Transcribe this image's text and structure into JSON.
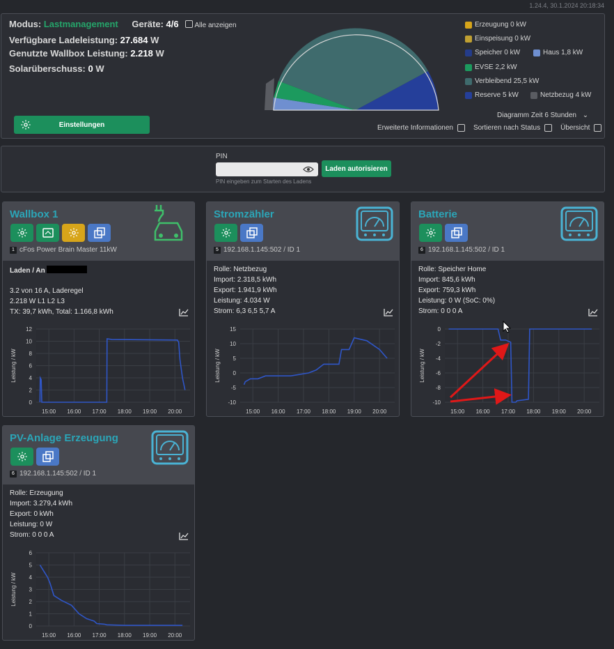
{
  "version": "1.24.4, 30.1.2024 20:18:34",
  "summary": {
    "mode_label": "Modus:",
    "mode_value": "Lastmanagement",
    "devices_label": "Geräte:",
    "devices_value": "4/6",
    "show_all_label": "Alle anzeigen",
    "available_label": "Verfügbare Ladeleistung:",
    "available_value": "27.684",
    "available_unit": "W",
    "used_label": "Genutzte Wallbox Leistung:",
    "used_value": "2.218",
    "used_unit": "W",
    "solar_label": "Solarüberschuss:",
    "solar_value": "0",
    "solar_unit": "W",
    "settings_button": "Einstellungen",
    "diagram_time": "Diagramm Zeit 6 Stunden",
    "extended_info": "Erweiterte Informationen",
    "sort_status": "Sortieren nach Status",
    "overview": "Übersicht"
  },
  "legend": [
    {
      "label": "Erzeugung 0 kW",
      "color": "#d7a51a"
    },
    {
      "label": "Einspeisung 0 kW",
      "color": "#c0a032"
    },
    {
      "label": "Speicher 0 kW",
      "color": "#243c8a"
    },
    {
      "label": "Haus 1,8 kW",
      "color": "#6f8fd0"
    },
    {
      "label": "EVSE 2,2 kW",
      "color": "#1c9a5e"
    },
    {
      "label": "Verbleibend 25,5 kW",
      "color": "#3f6b6d"
    },
    {
      "label": "Reserve 5 kW",
      "color": "#253f9a"
    },
    {
      "label": "Netzbezug 4 kW",
      "color": "#5a5c62"
    }
  ],
  "pin": {
    "label": "PIN",
    "placeholder": "",
    "hint": "PIN eingeben zum Starten des Ladens",
    "button": "Laden autorisieren"
  },
  "cards": {
    "wallbox": {
      "title": "Wallbox 1",
      "index": "1",
      "subtitle": "cFos Power Brain Master 11kW",
      "status": "Laden / An",
      "line1": "3.2 von 16 A, Laderegel",
      "line2": "2.218 W L1 L2 L3",
      "line3": "TX: 39,7 kWh, Total: 1.166,8 kWh"
    },
    "meter": {
      "title": "Stromzähler",
      "index": "5",
      "subtitle": "192.168.1.145:502 / ID 1",
      "role": "Rolle: Netzbezug",
      "import": "Import: 2.318,5 kWh",
      "export": "Export: 1.941,9 kWh",
      "power": "Leistung: 4.034 W",
      "current": "Strom: 6,3 6,5 5,7 A"
    },
    "battery": {
      "title": "Batterie",
      "index": "6",
      "subtitle": "192.168.1.145:502 / ID 1",
      "role": "Rolle: Speicher Home",
      "import": "Import: 845,6 kWh",
      "export": "Export: 759,3 kWh",
      "power": "Leistung: 0 W (SoC: 0%)",
      "current": "Strom: 0 0 0 A"
    },
    "pv": {
      "title": "PV-Anlage Erzeugung",
      "index": "6",
      "subtitle": "192.168.1.145:502 / ID 1",
      "role": "Rolle: Erzeugung",
      "import": "Import: 3.279,4 kWh",
      "export": "Export: 0 kWh",
      "power": "Leistung: 0 W",
      "current": "Strom: 0 0 0 A"
    }
  },
  "chart_data": [
    {
      "type": "line",
      "name": "wallbox",
      "ylabel": "Leistung / kW",
      "ylim": [
        0,
        12
      ],
      "yticks": [
        "12",
        "10",
        "8",
        "6",
        "4",
        "2",
        "0"
      ],
      "xticks": [
        "15:00",
        "16:00",
        "17:00",
        "18:00",
        "19:00",
        "20:00"
      ],
      "x": [
        14.65,
        14.66,
        14.7,
        14.72,
        17.3,
        17.31,
        17.5,
        20.1,
        20.15,
        20.2,
        20.3,
        20.4
      ],
      "y": [
        0,
        4,
        3.7,
        0,
        0,
        10.4,
        10.3,
        10.2,
        9.8,
        7,
        4,
        2
      ]
    },
    {
      "type": "line",
      "name": "meter",
      "ylabel": "Leistung / kW",
      "ylim": [
        -10,
        15
      ],
      "yticks": [
        "15",
        "10",
        "5",
        "0",
        "-5",
        "-10"
      ],
      "xticks": [
        "15:00",
        "16:00",
        "17:00",
        "18:00",
        "19:00",
        "20:00"
      ],
      "x": [
        14.65,
        14.7,
        14.9,
        15.2,
        15.5,
        15.9,
        16.5,
        17.2,
        17.5,
        17.8,
        18.2,
        18.4,
        18.5,
        18.8,
        19.0,
        19.5,
        20.0,
        20.3
      ],
      "y": [
        -4,
        -3,
        -2,
        -2,
        -1,
        -1,
        -1,
        0,
        1,
        3,
        3,
        3,
        8,
        8,
        12,
        11,
        8,
        5
      ]
    },
    {
      "type": "line",
      "name": "battery",
      "ylabel": "Leistung / kW",
      "ylim": [
        -10,
        0
      ],
      "yticks": [
        "0",
        "-2",
        "-4",
        "-6",
        "-8",
        "-10"
      ],
      "xticks": [
        "15:00",
        "16:00",
        "17:00",
        "18:00",
        "19:00",
        "20:00"
      ],
      "x": [
        14.65,
        16.6,
        16.7,
        16.9,
        17.1,
        17.15,
        17.3,
        17.35,
        17.8,
        17.85,
        20.3
      ],
      "y": [
        0,
        0,
        -1.5,
        -1.5,
        -1.8,
        -10,
        -10,
        -9.8,
        -9.6,
        0,
        0
      ]
    },
    {
      "type": "line",
      "name": "pv",
      "ylabel": "Leistung / kW",
      "ylim": [
        0,
        6
      ],
      "yticks": [
        "6",
        "5",
        "4",
        "3",
        "2",
        "1",
        "0"
      ],
      "xticks": [
        "15:00",
        "16:00",
        "17:00",
        "18:00",
        "19:00",
        "20:00"
      ],
      "x": [
        14.65,
        14.8,
        14.95,
        15.05,
        15.2,
        15.5,
        15.9,
        16.2,
        16.5,
        16.8,
        16.9,
        17.2,
        17.3,
        18.0,
        20.3
      ],
      "y": [
        5,
        4.5,
        4.0,
        3.5,
        2.5,
        2.1,
        1.7,
        1.0,
        0.6,
        0.4,
        0.2,
        0.15,
        0.1,
        0.05,
        0.05
      ]
    }
  ]
}
